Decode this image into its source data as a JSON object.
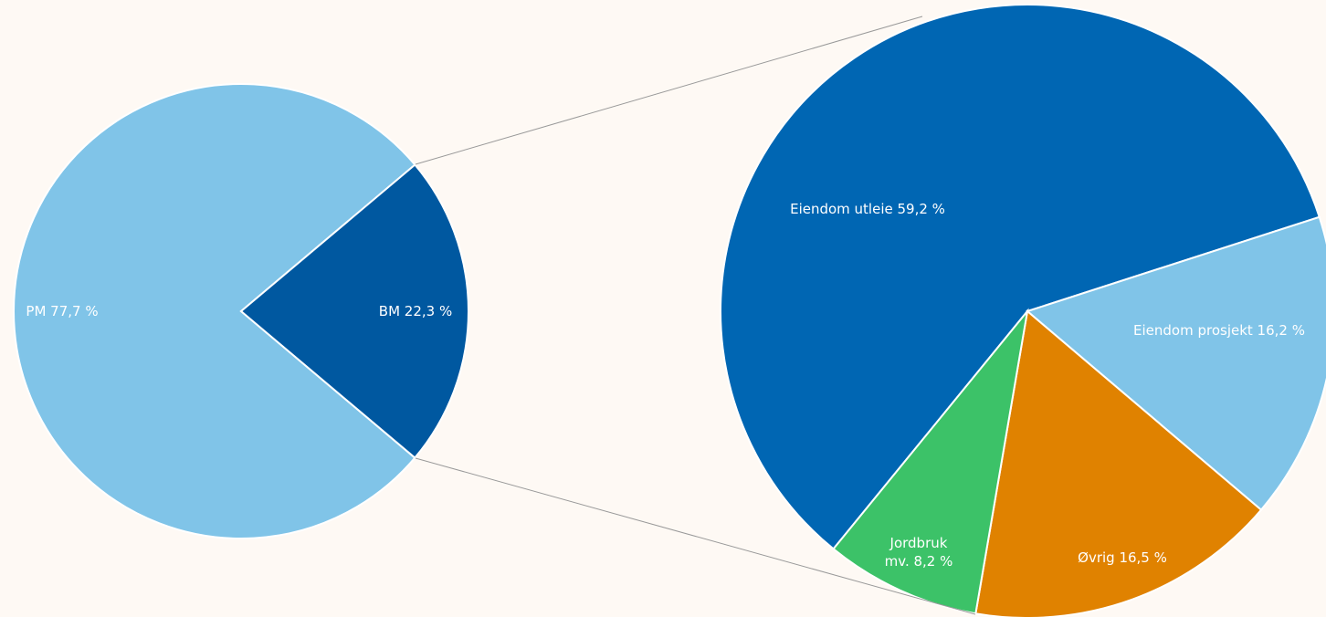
{
  "chart_data": [
    {
      "type": "pie",
      "values": [
        77.7,
        22.3
      ],
      "value_labels": [
        "PM 77,7 %",
        "BM 22,3 %"
      ],
      "colors": [
        "#80c4e8",
        "#0058a0"
      ]
    },
    {
      "type": "pie",
      "values": [
        59.2,
        16.2,
        16.5,
        8.2
      ],
      "value_labels": [
        "Eiendom utleie 59,2 %",
        "Eiendom prosjekt 16,2 %",
        "Øvrig 16,5 %",
        "Jordbruk mv. 8,2 %"
      ],
      "colors": [
        "#0066b3",
        "#80c4e8",
        "#e08200",
        "#3cc268"
      ]
    }
  ]
}
